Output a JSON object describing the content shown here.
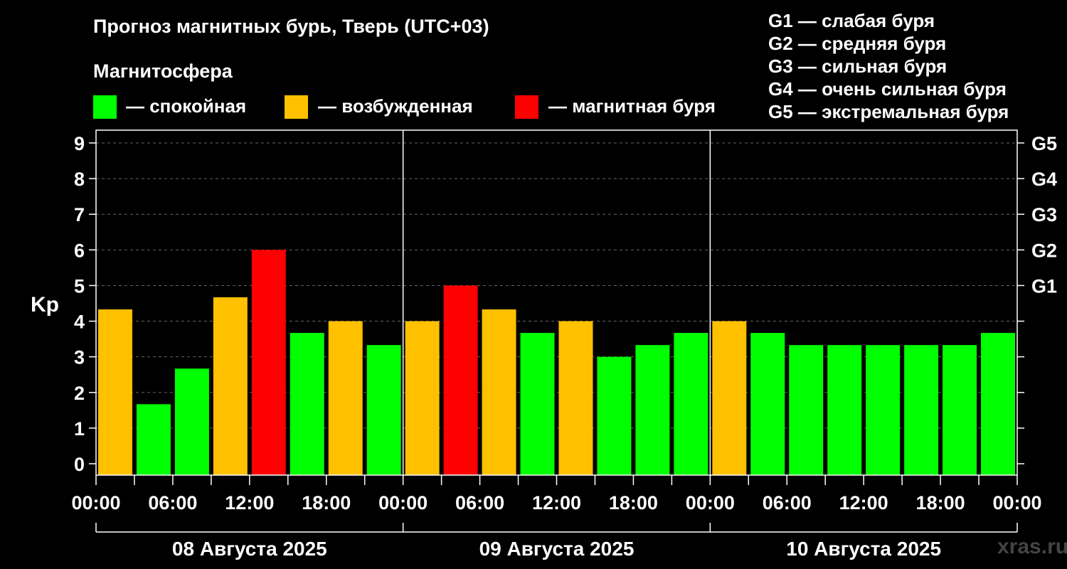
{
  "title": "Прогноз магнитных бурь, Тверь (UTC+03)",
  "subtitle": "Магнитосфера",
  "legend": [
    {
      "color": "#00ff00",
      "label": "— спокойная"
    },
    {
      "color": "#ffc000",
      "label": "— возбужденная"
    },
    {
      "color": "#ff0000",
      "label": "— магнитная буря"
    }
  ],
  "g_levels": [
    "G1 — слабая буря",
    "G2 — средняя буря",
    "G3 — сильная буря",
    "G4 — очень сильная буря",
    "G5 — экстремальная буря"
  ],
  "watermark": "xras.ru",
  "chart_data": {
    "type": "bar",
    "ylabel": "Kp",
    "ylim": [
      0,
      9
    ],
    "yticks": [
      "0",
      "1",
      "2",
      "3",
      "4",
      "5",
      "6",
      "7",
      "8",
      "9"
    ],
    "right_ticks": [
      {
        "value": 5,
        "label": "G1"
      },
      {
        "value": 6,
        "label": "G2"
      },
      {
        "value": 7,
        "label": "G3"
      },
      {
        "value": 8,
        "label": "G4"
      },
      {
        "value": 9,
        "label": "G5"
      }
    ],
    "xtick_labels": [
      "00:00",
      "06:00",
      "12:00",
      "18:00",
      "00:00",
      "06:00",
      "12:00",
      "18:00",
      "00:00",
      "06:00",
      "12:00",
      "18:00",
      "00:00"
    ],
    "days": [
      "08 Августа 2025",
      "09 Августа 2025",
      "10 Августа 2025"
    ],
    "colors": {
      "quiet": "#00ff00",
      "active": "#ffc000",
      "storm": "#ff0000"
    },
    "values": [
      4.33,
      1.67,
      2.67,
      4.67,
      6.0,
      3.67,
      4.0,
      3.33,
      4.0,
      5.0,
      4.33,
      3.67,
      4.0,
      3.0,
      3.33,
      3.67,
      4.0,
      3.67,
      3.33,
      3.33,
      3.33,
      3.33,
      3.33,
      3.67
    ],
    "levels": [
      "active",
      "quiet",
      "quiet",
      "active",
      "storm",
      "quiet",
      "active",
      "quiet",
      "active",
      "storm",
      "active",
      "quiet",
      "active",
      "quiet",
      "quiet",
      "quiet",
      "active",
      "quiet",
      "quiet",
      "quiet",
      "quiet",
      "quiet",
      "quiet",
      "quiet"
    ],
    "grid": true
  }
}
